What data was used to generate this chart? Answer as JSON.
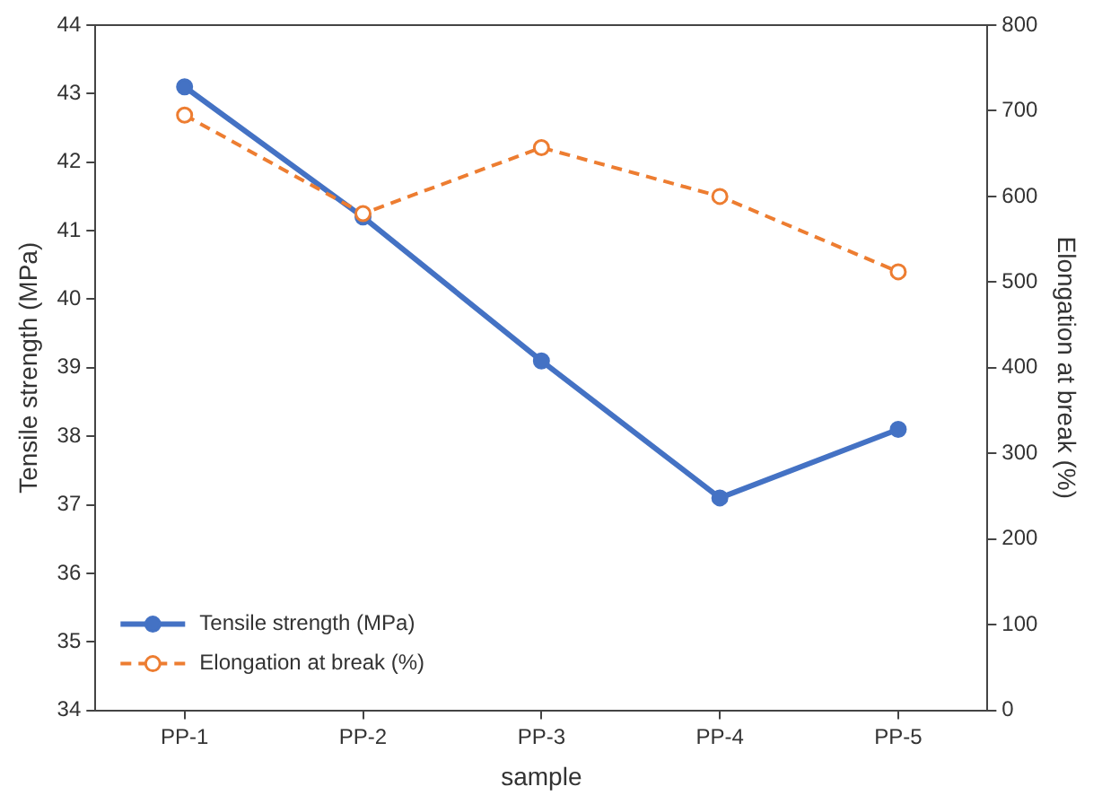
{
  "chart_data": {
    "type": "line",
    "xlabel": "sample",
    "ylabel": "Tensile strength (MPa)",
    "y2label": "Elongation at break (%)",
    "categories": [
      "PP-1",
      "PP-2",
      "PP-3",
      "PP-4",
      "PP-5"
    ],
    "series": [
      {
        "name": "Tensile strength (MPa)",
        "color": "#4472c4",
        "values": [
          43.1,
          41.2,
          39.1,
          37.1,
          38.1
        ],
        "marker": "circle",
        "line_style": "solid"
      },
      {
        "name": "Elongation at break (%)",
        "color": "#ed7d31",
        "values": [
          695,
          580,
          657,
          600,
          512
        ],
        "axis": "y2",
        "marker": "circle",
        "line_style": "dashed"
      }
    ],
    "ylim": [
      34,
      44
    ],
    "yticks": [
      34,
      35,
      36,
      37,
      38,
      39,
      40,
      41,
      42,
      43,
      44
    ],
    "y2lim": [
      0,
      800
    ],
    "y2ticks": [
      0,
      100,
      200,
      300,
      400,
      500,
      600,
      700,
      800
    ],
    "grid": false,
    "legend": "bottom left"
  }
}
